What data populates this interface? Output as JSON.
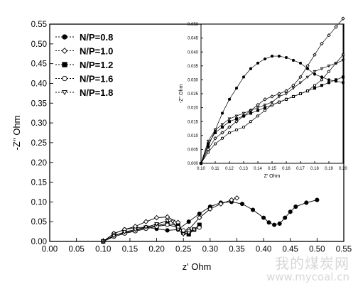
{
  "chart_data": [
    {
      "type": "line",
      "role": "main",
      "xlabel": "z' Ohm",
      "ylabel": "-Z'' Ohm",
      "xlim": [
        0,
        0.55
      ],
      "ylim": [
        0,
        0.55
      ],
      "xticks": [
        "0.00",
        "0.05",
        "0.10",
        "0.15",
        "0.20",
        "0.25",
        "0.30",
        "0.35",
        "0.40",
        "0.45",
        "0.50",
        "0.55"
      ],
      "yticks": [
        "0.00",
        "0.05",
        "0.10",
        "0.15",
        "0.20",
        "0.25",
        "0.30",
        "0.35",
        "0.40",
        "0.45",
        "0.50",
        "0.55"
      ],
      "legend_position": "top-left",
      "series": [
        {
          "name": "N/P=0.8",
          "marker": "filled-circle",
          "x": [
            0.1,
            0.12,
            0.14,
            0.16,
            0.18,
            0.2,
            0.22,
            0.24,
            0.26,
            0.28,
            0.3,
            0.32,
            0.34,
            0.36,
            0.38,
            0.4,
            0.41,
            0.42,
            0.43,
            0.44,
            0.45,
            0.46,
            0.48,
            0.5
          ],
          "y": [
            0.0,
            0.02,
            0.03,
            0.035,
            0.036,
            0.032,
            0.028,
            0.03,
            0.05,
            0.07,
            0.088,
            0.098,
            0.1,
            0.095,
            0.08,
            0.06,
            0.048,
            0.042,
            0.045,
            0.06,
            0.075,
            0.088,
            0.098,
            0.105
          ]
        },
        {
          "name": "N/P=1.0",
          "marker": "open-diamond",
          "x": [
            0.1,
            0.12,
            0.14,
            0.16,
            0.18,
            0.2,
            0.22,
            0.24,
            0.25,
            0.26,
            0.28,
            0.3,
            0.32,
            0.34,
            0.35
          ],
          "y": [
            0.0,
            0.02,
            0.03,
            0.038,
            0.05,
            0.06,
            0.062,
            0.048,
            0.02,
            0.03,
            0.06,
            0.082,
            0.095,
            0.105,
            0.11
          ]
        },
        {
          "name": "N/P=1.2",
          "marker": "filled-square",
          "x": [
            0.1,
            0.12,
            0.14,
            0.16,
            0.18,
            0.2,
            0.22,
            0.24,
            0.25,
            0.26,
            0.27,
            0.28
          ],
          "y": [
            0.0,
            0.015,
            0.022,
            0.028,
            0.035,
            0.04,
            0.045,
            0.04,
            0.022,
            0.018,
            0.03,
            0.042
          ]
        },
        {
          "name": "N/P=1.6",
          "marker": "open-circle",
          "x": [
            0.1,
            0.12,
            0.14,
            0.16,
            0.18,
            0.2,
            0.22,
            0.24,
            0.25,
            0.26,
            0.27,
            0.28
          ],
          "y": [
            0.0,
            0.012,
            0.02,
            0.026,
            0.032,
            0.038,
            0.042,
            0.036,
            0.028,
            0.026,
            0.03,
            0.035
          ]
        },
        {
          "name": "N/P=1.8",
          "marker": "open-triangle-down",
          "x": [
            0.1,
            0.12,
            0.14,
            0.16,
            0.18,
            0.2,
            0.22,
            0.23,
            0.24,
            0.25,
            0.26,
            0.27
          ],
          "y": [
            0.0,
            0.014,
            0.024,
            0.03,
            0.036,
            0.044,
            0.052,
            0.05,
            0.03,
            0.018,
            0.022,
            0.03
          ]
        }
      ]
    },
    {
      "type": "line",
      "role": "inset",
      "xlabel": "Z' Ohm",
      "ylabel": "-Z'' Ohm",
      "xlim": [
        0.1,
        0.2
      ],
      "ylim": [
        0.0,
        0.05
      ],
      "xticks": [
        "0.10",
        "0.11",
        "0.12",
        "0.13",
        "0.14",
        "0.15",
        "0.16",
        "0.17",
        "0.18",
        "0.19",
        "0.20"
      ],
      "yticks": [
        "0.000",
        "0.005",
        "0.010",
        "0.015",
        "0.020",
        "0.025",
        "0.030",
        "0.035",
        "0.040",
        "0.045",
        "0.050"
      ],
      "series": [
        {
          "name": "N/P=0.8",
          "marker": "filled-circle",
          "x": [
            0.1,
            0.105,
            0.11,
            0.115,
            0.12,
            0.125,
            0.13,
            0.135,
            0.14,
            0.145,
            0.15,
            0.155,
            0.16,
            0.165,
            0.17,
            0.175,
            0.18,
            0.185,
            0.19,
            0.195,
            0.2
          ],
          "y": [
            0.0,
            0.006,
            0.012,
            0.018,
            0.023,
            0.027,
            0.031,
            0.034,
            0.036,
            0.0375,
            0.0385,
            0.0385,
            0.038,
            0.037,
            0.036,
            0.034,
            0.032,
            0.031,
            0.03,
            0.0295,
            0.029
          ]
        },
        {
          "name": "N/P=1.0",
          "marker": "open-diamond",
          "x": [
            0.1,
            0.105,
            0.11,
            0.115,
            0.12,
            0.125,
            0.13,
            0.135,
            0.14,
            0.145,
            0.15,
            0.155,
            0.16,
            0.165,
            0.17,
            0.175,
            0.18,
            0.185,
            0.19,
            0.195,
            0.2
          ],
          "y": [
            0.0,
            0.005,
            0.009,
            0.011,
            0.013,
            0.015,
            0.017,
            0.019,
            0.021,
            0.023,
            0.024,
            0.025,
            0.026,
            0.028,
            0.031,
            0.035,
            0.039,
            0.043,
            0.046,
            0.049,
            0.052
          ]
        },
        {
          "name": "N/P=1.2",
          "marker": "filled-square",
          "x": [
            0.1,
            0.105,
            0.11,
            0.115,
            0.12,
            0.125,
            0.13,
            0.135,
            0.14,
            0.145,
            0.15,
            0.155,
            0.16,
            0.165,
            0.17,
            0.175,
            0.18,
            0.185,
            0.19,
            0.195,
            0.2
          ],
          "y": [
            0.0,
            0.007,
            0.011,
            0.013,
            0.015,
            0.016,
            0.017,
            0.018,
            0.019,
            0.02,
            0.021,
            0.022,
            0.023,
            0.024,
            0.025,
            0.026,
            0.027,
            0.028,
            0.029,
            0.03,
            0.031
          ]
        },
        {
          "name": "N/P=1.6",
          "marker": "open-circle",
          "x": [
            0.1,
            0.105,
            0.11,
            0.115,
            0.12,
            0.125,
            0.13,
            0.135,
            0.14,
            0.145,
            0.15,
            0.155,
            0.16,
            0.165,
            0.17,
            0.175,
            0.18,
            0.185,
            0.19,
            0.195,
            0.2
          ],
          "y": [
            0.0,
            0.004,
            0.007,
            0.009,
            0.011,
            0.012,
            0.013,
            0.015,
            0.017,
            0.019,
            0.021,
            0.022,
            0.023,
            0.024,
            0.025,
            0.026,
            0.028,
            0.03,
            0.033,
            0.036,
            0.039
          ]
        },
        {
          "name": "N/P=1.8",
          "marker": "open-triangle-down",
          "x": [
            0.1,
            0.105,
            0.11,
            0.115,
            0.12,
            0.125,
            0.13,
            0.135,
            0.14,
            0.145,
            0.15,
            0.155,
            0.16,
            0.165,
            0.17,
            0.175,
            0.18,
            0.185,
            0.19,
            0.195,
            0.2
          ],
          "y": [
            0.0,
            0.008,
            0.012,
            0.014,
            0.016,
            0.017,
            0.018,
            0.019,
            0.02,
            0.021,
            0.022,
            0.024,
            0.025,
            0.027,
            0.029,
            0.031,
            0.033,
            0.034,
            0.035,
            0.036,
            0.037
          ]
        }
      ]
    }
  ],
  "watermark": {
    "text": "我的煤炭网",
    "url": "www.mycoal.cn"
  }
}
